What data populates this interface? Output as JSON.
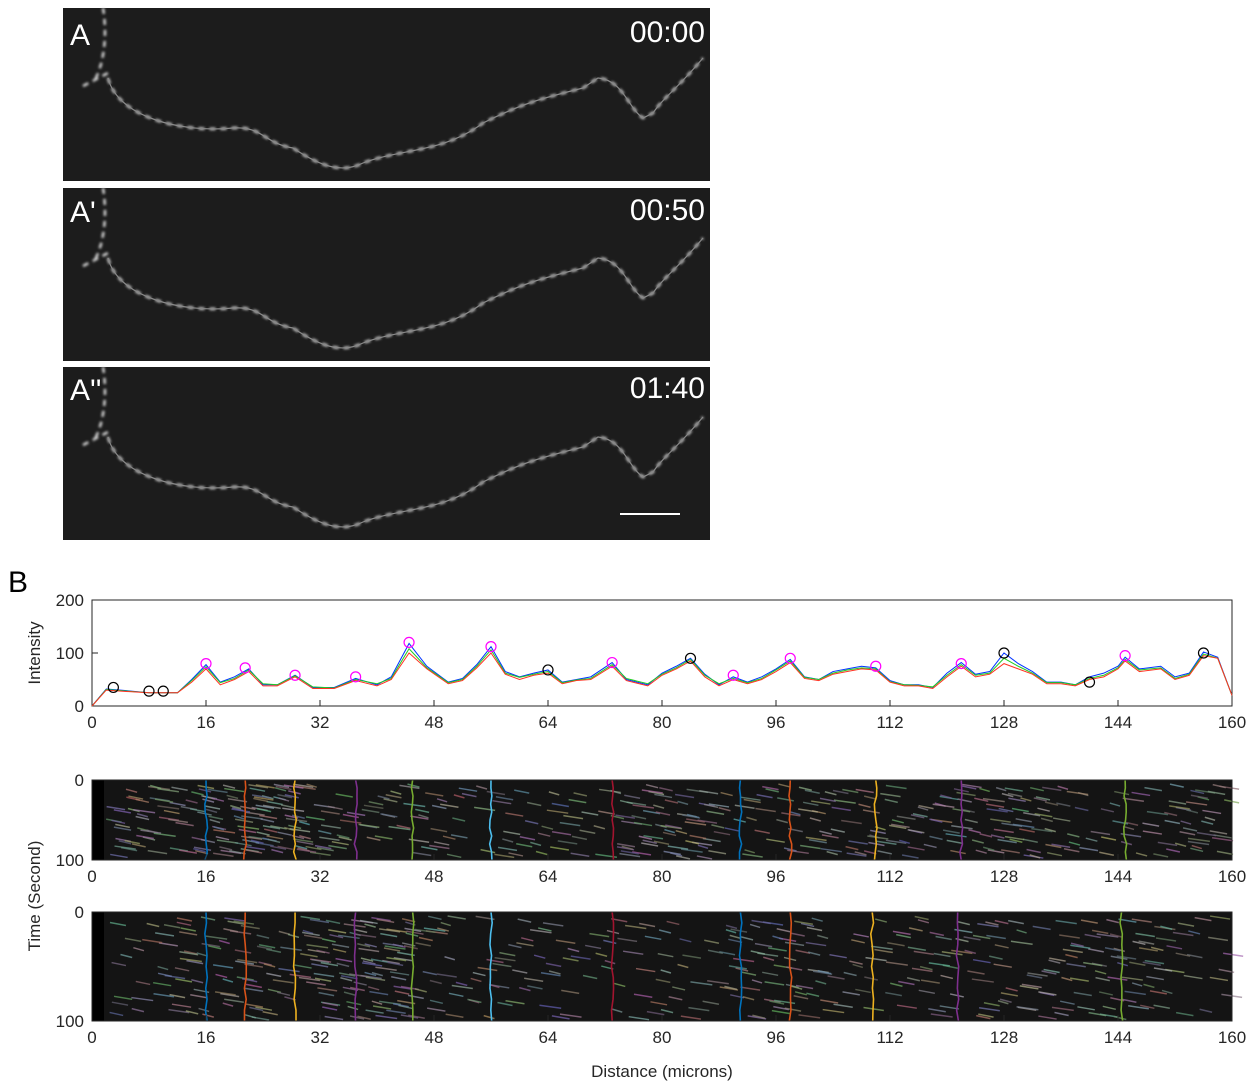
{
  "panels": [
    {
      "label": "A",
      "time": "00:00"
    },
    {
      "label": "A'",
      "time": "00:50"
    },
    {
      "label": "A''",
      "time": "01:40"
    }
  ],
  "panel_b_label": "B",
  "chart_data": [
    {
      "type": "line",
      "ylabel": "Intensity",
      "xlim": [
        0,
        160
      ],
      "xticks": [
        0,
        16,
        32,
        48,
        64,
        80,
        96,
        112,
        128,
        144,
        160
      ],
      "ylim": [
        0,
        200
      ],
      "yticks": [
        0,
        100,
        200
      ],
      "x": [
        0,
        2,
        4,
        8,
        12,
        14,
        16,
        18,
        20,
        22,
        24,
        26,
        28.5,
        31,
        34,
        37,
        40,
        42,
        44.5,
        47,
        50,
        52,
        54,
        56,
        58,
        60,
        62,
        64,
        66,
        68,
        70,
        73,
        75,
        78,
        80,
        82,
        84,
        86,
        88,
        90,
        92,
        94,
        96,
        98,
        100,
        102,
        104,
        106,
        108,
        110,
        112,
        114,
        116,
        118,
        120,
        122,
        124,
        126,
        128,
        130,
        132,
        134,
        136,
        138,
        140,
        142,
        144,
        145,
        147,
        150,
        152,
        154,
        156,
        158,
        160
      ],
      "series": [
        {
          "color": "#0033ff",
          "values": [
            0,
            32,
            30,
            25,
            25,
            50,
            78,
            45,
            55,
            70,
            40,
            40,
            58,
            35,
            35,
            52,
            40,
            55,
            118,
            75,
            45,
            52,
            78,
            112,
            65,
            55,
            62,
            68,
            45,
            50,
            55,
            82,
            50,
            40,
            62,
            75,
            90,
            60,
            40,
            55,
            45,
            55,
            70,
            88,
            55,
            50,
            65,
            70,
            75,
            72,
            48,
            40,
            40,
            35,
            62,
            82,
            60,
            65,
            100,
            80,
            65,
            45,
            45,
            40,
            55,
            62,
            75,
            92,
            70,
            75,
            55,
            62,
            102,
            92,
            20
          ]
        },
        {
          "color": "#22cc22",
          "values": [
            0,
            31,
            29,
            25,
            25,
            48,
            74,
            44,
            52,
            68,
            42,
            40,
            57,
            36,
            34,
            50,
            42,
            52,
            108,
            72,
            44,
            50,
            75,
            106,
            62,
            54,
            60,
            65,
            44,
            49,
            52,
            78,
            52,
            42,
            60,
            72,
            88,
            58,
            42,
            52,
            44,
            52,
            68,
            85,
            54,
            50,
            62,
            68,
            72,
            70,
            46,
            40,
            39,
            36,
            58,
            78,
            58,
            62,
            90,
            75,
            62,
            44,
            44,
            40,
            52,
            58,
            72,
            88,
            68,
            72,
            52,
            60,
            98,
            90,
            20
          ]
        },
        {
          "color": "#ff3322",
          "values": [
            0,
            30,
            28,
            25,
            25,
            45,
            70,
            40,
            50,
            65,
            38,
            38,
            55,
            33,
            33,
            48,
            38,
            50,
            100,
            70,
            42,
            48,
            72,
            100,
            60,
            50,
            58,
            62,
            42,
            48,
            50,
            75,
            48,
            38,
            58,
            70,
            85,
            55,
            38,
            50,
            42,
            50,
            65,
            82,
            52,
            48,
            60,
            65,
            70,
            68,
            45,
            38,
            38,
            33,
            55,
            75,
            55,
            60,
            80,
            70,
            60,
            42,
            42,
            38,
            50,
            55,
            70,
            85,
            65,
            70,
            50,
            58,
            95,
            90,
            20
          ]
        }
      ],
      "peaks": {
        "color": "#ff00ff",
        "x": [
          16,
          21.5,
          28.5,
          37,
          44.5,
          56,
          73,
          90,
          98,
          110,
          122,
          145
        ],
        "y": [
          80,
          72,
          58,
          55,
          120,
          112,
          82,
          58,
          90,
          75,
          80,
          95
        ]
      },
      "troughs": {
        "color": "#000000",
        "x": [
          3,
          8,
          10,
          64,
          84,
          128,
          140,
          156
        ],
        "y": [
          35,
          28,
          28,
          68,
          90,
          100,
          45,
          100
        ]
      }
    },
    {
      "type": "kymograph",
      "ylabel": "Time (Second)",
      "xlim": [
        0,
        160
      ],
      "xticks": [
        0,
        16,
        32,
        48,
        64,
        80,
        96,
        112,
        128,
        144,
        160
      ],
      "ylim": [
        0,
        100
      ],
      "yticks": [
        0,
        100
      ],
      "y_reversed": true,
      "tracks": {
        "x": [
          16,
          21.5,
          28.5,
          37,
          45,
          56,
          73,
          91,
          98,
          110,
          122,
          145
        ],
        "colors": [
          "#0072bd",
          "#d95319",
          "#edb120",
          "#7e2f8e",
          "#77ac30",
          "#4dbeee",
          "#a2142f",
          "#0072bd",
          "#d95319",
          "#edb120",
          "#7e2f8e",
          "#77ac30"
        ]
      }
    },
    {
      "type": "kymograph",
      "xlabel": "Distance (microns)",
      "xlim": [
        0,
        160
      ],
      "xticks": [
        0,
        16,
        32,
        48,
        64,
        80,
        96,
        112,
        128,
        144,
        160
      ],
      "ylim": [
        0,
        100
      ],
      "yticks": [
        0,
        100
      ],
      "y_reversed": true,
      "tracks": {
        "x": [
          16,
          21.5,
          28.5,
          37,
          45,
          56,
          73,
          91,
          98,
          109.5,
          121.5,
          144.5
        ],
        "colors": [
          "#0072bd",
          "#d95319",
          "#edb120",
          "#7e2f8e",
          "#77ac30",
          "#4dbeee",
          "#a2142f",
          "#0072bd",
          "#d95319",
          "#edb120",
          "#7e2f8e",
          "#77ac30"
        ]
      }
    }
  ]
}
